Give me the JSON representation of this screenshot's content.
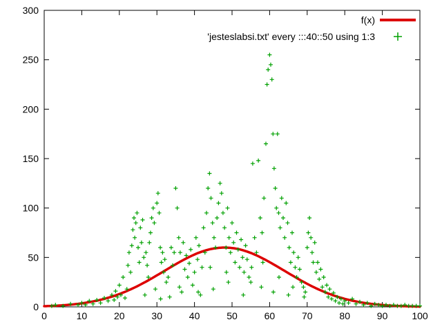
{
  "colors": {
    "background": "#ffffff",
    "axis": "#000000",
    "curve_red": "#dd0000",
    "points_green": "#00a000"
  },
  "chart_data": {
    "type": "scatter",
    "title": "",
    "xlabel": "",
    "ylabel": "",
    "xlim": [
      0,
      100
    ],
    "ylim": [
      0,
      300
    ],
    "xticks": [
      0,
      10,
      20,
      30,
      40,
      50,
      60,
      70,
      80,
      90,
      100
    ],
    "yticks": [
      0,
      50,
      100,
      150,
      200,
      250,
      300
    ],
    "grid": false,
    "legend_position": "top-right",
    "legend": [
      {
        "label": "f(x)",
        "type": "line",
        "color": "#dd0000"
      },
      {
        "label": "'jesteslabsi.txt' every :::40::50 using 1:3",
        "type": "points",
        "color": "#00a000"
      }
    ],
    "curve": {
      "name": "f(x)",
      "model": "gaussian",
      "amplitude": 60,
      "mean": 48,
      "sigma": 16,
      "color": "#dd0000",
      "samples": [
        [
          0,
          0.7
        ],
        [
          10,
          3.4
        ],
        [
          20,
          13.0
        ],
        [
          30,
          31.7
        ],
        [
          40,
          53.2
        ],
        [
          48,
          60.0
        ],
        [
          56,
          53.2
        ],
        [
          60,
          45.6
        ],
        [
          70,
          23.5
        ],
        [
          80,
          8.1
        ],
        [
          90,
          1.9
        ],
        [
          100,
          0.3
        ]
      ]
    },
    "series": [
      {
        "name": "'jesteslabsi.txt' every :::40::50 using 1:3",
        "marker": "plus",
        "color": "#00a000",
        "points": [
          [
            2,
            1
          ],
          [
            3,
            2
          ],
          [
            5,
            1
          ],
          [
            7,
            3
          ],
          [
            9,
            2
          ],
          [
            10,
            4
          ],
          [
            11,
            2
          ],
          [
            12,
            6
          ],
          [
            13,
            3
          ],
          [
            14,
            7
          ],
          [
            15,
            4
          ],
          [
            16,
            9
          ],
          [
            17,
            6
          ],
          [
            18,
            12
          ],
          [
            18.6,
            7
          ],
          [
            19,
            16
          ],
          [
            19.5,
            10
          ],
          [
            20,
            22
          ],
          [
            20.4,
            12
          ],
          [
            21,
            30
          ],
          [
            21.5,
            9
          ],
          [
            22,
            18
          ],
          [
            22.3,
            42
          ],
          [
            22.6,
            55
          ],
          [
            23,
            35
          ],
          [
            23.3,
            62
          ],
          [
            23.6,
            78
          ],
          [
            23.9,
            90
          ],
          [
            24.1,
            70
          ],
          [
            24.4,
            85
          ],
          [
            24.7,
            95
          ],
          [
            25,
            60
          ],
          [
            25.3,
            45
          ],
          [
            25.6,
            80
          ],
          [
            25.9,
            65
          ],
          [
            26.2,
            88
          ],
          [
            26.5,
            50
          ],
          [
            26.8,
            12
          ],
          [
            27.1,
            55
          ],
          [
            27.4,
            42
          ],
          [
            27.7,
            30
          ],
          [
            28,
            65
          ],
          [
            28.3,
            75
          ],
          [
            28.6,
            90
          ],
          [
            29,
            100
          ],
          [
            29.3,
            85
          ],
          [
            29.6,
            18
          ],
          [
            30,
            105
          ],
          [
            30.3,
            115
          ],
          [
            30.6,
            95
          ],
          [
            30.9,
            60
          ],
          [
            31,
            8
          ],
          [
            31.2,
            45
          ],
          [
            31.5,
            55
          ],
          [
            31.8,
            35
          ],
          [
            32.1,
            48
          ],
          [
            32.5,
            25
          ],
          [
            33,
            30
          ],
          [
            33.4,
            10
          ],
          [
            33.8,
            60
          ],
          [
            34.2,
            42
          ],
          [
            34.6,
            55
          ],
          [
            35,
            120
          ],
          [
            35.4,
            100
          ],
          [
            35.8,
            70
          ],
          [
            36,
            20
          ],
          [
            36.2,
            55
          ],
          [
            36.6,
            15
          ],
          [
            37,
            65
          ],
          [
            37.4,
            38
          ],
          [
            37.8,
            52
          ],
          [
            38.2,
            30
          ],
          [
            38.6,
            44
          ],
          [
            39,
            58
          ],
          [
            39.5,
            22
          ],
          [
            40,
            35
          ],
          [
            40.4,
            70
          ],
          [
            40.8,
            48
          ],
          [
            41,
            15
          ],
          [
            41.2,
            62
          ],
          [
            41.6,
            12
          ],
          [
            42,
            40
          ],
          [
            42.4,
            80
          ],
          [
            42.8,
            55
          ],
          [
            43.2,
            95
          ],
          [
            43.6,
            120
          ],
          [
            44,
            135
          ],
          [
            44.2,
            40
          ],
          [
            44.4,
            110
          ],
          [
            44.8,
            85
          ],
          [
            45,
            18
          ],
          [
            45.2,
            70
          ],
          [
            45.6,
            60
          ],
          [
            46,
            90
          ],
          [
            46.4,
            105
          ],
          [
            46.8,
            125
          ],
          [
            47.2,
            115
          ],
          [
            47.6,
            95
          ],
          [
            48,
            80
          ],
          [
            48.4,
            60
          ],
          [
            48.5,
            35
          ],
          [
            48.8,
            100
          ],
          [
            49,
            25
          ],
          [
            49.2,
            70
          ],
          [
            49.6,
            55
          ],
          [
            50,
            85
          ],
          [
            50.4,
            65
          ],
          [
            50.8,
            45
          ],
          [
            51.2,
            75
          ],
          [
            51.6,
            58
          ],
          [
            52,
            40
          ],
          [
            52.4,
            68
          ],
          [
            52.8,
            50
          ],
          [
            53,
            12
          ],
          [
            53.2,
            35
          ],
          [
            53.6,
            62
          ],
          [
            54,
            48
          ],
          [
            54.5,
            30
          ],
          [
            55,
            25
          ],
          [
            55.2,
            40
          ],
          [
            55.5,
            145
          ],
          [
            56,
            70
          ],
          [
            56.5,
            55
          ],
          [
            57,
            148
          ],
          [
            57.5,
            90
          ],
          [
            57.8,
            20
          ],
          [
            58,
            75
          ],
          [
            58.2,
            45
          ],
          [
            58.5,
            110
          ],
          [
            59,
            165
          ],
          [
            59.3,
            225
          ],
          [
            59.6,
            240
          ],
          [
            60,
            255
          ],
          [
            60.3,
            245
          ],
          [
            60.6,
            230
          ],
          [
            60.9,
            175
          ],
          [
            61,
            15
          ],
          [
            61.2,
            140
          ],
          [
            61.5,
            120
          ],
          [
            61.8,
            100
          ],
          [
            62.1,
            175
          ],
          [
            62.4,
            95
          ],
          [
            62.5,
            30
          ],
          [
            62.8,
            80
          ],
          [
            63.2,
            110
          ],
          [
            63.6,
            90
          ],
          [
            64,
            70
          ],
          [
            64.4,
            105
          ],
          [
            64.8,
            85
          ],
          [
            65,
            12
          ],
          [
            65.2,
            60
          ],
          [
            65.6,
            45
          ],
          [
            66,
            75
          ],
          [
            66.2,
            20
          ],
          [
            66.4,
            55
          ],
          [
            66.8,
            40
          ],
          [
            67.2,
            30
          ],
          [
            67.6,
            50
          ],
          [
            68,
            38
          ],
          [
            68.5,
            25
          ],
          [
            69,
            20
          ],
          [
            69.2,
            10
          ],
          [
            69.5,
            15
          ],
          [
            70,
            60
          ],
          [
            70.3,
            75
          ],
          [
            70.6,
            90
          ],
          [
            71,
            70
          ],
          [
            71.3,
            55
          ],
          [
            71.6,
            45
          ],
          [
            72,
            65
          ],
          [
            72.4,
            35
          ],
          [
            72.8,
            45
          ],
          [
            73.2,
            28
          ],
          [
            73.6,
            38
          ],
          [
            74,
            20
          ],
          [
            74.4,
            30
          ],
          [
            74.8,
            15
          ],
          [
            75.2,
            22
          ],
          [
            75.6,
            10
          ],
          [
            76,
            18
          ],
          [
            76.5,
            8
          ],
          [
            77,
            14
          ],
          [
            77.5,
            6
          ],
          [
            78,
            10
          ],
          [
            78.5,
            4
          ],
          [
            79,
            8
          ],
          [
            79.5,
            3
          ],
          [
            80,
            6
          ],
          [
            81,
            4
          ],
          [
            82,
            8
          ],
          [
            83,
            3
          ],
          [
            84,
            5
          ],
          [
            85,
            2
          ],
          [
            86,
            4
          ],
          [
            87,
            1
          ],
          [
            88,
            3
          ],
          [
            89,
            2
          ],
          [
            90,
            1
          ],
          [
            91,
            2
          ],
          [
            92,
            1
          ],
          [
            93,
            2
          ],
          [
            94,
            1
          ],
          [
            95,
            1
          ],
          [
            96,
            2
          ],
          [
            97,
            1
          ],
          [
            98,
            1
          ],
          [
            99,
            1
          ],
          [
            100,
            1
          ]
        ]
      }
    ]
  }
}
